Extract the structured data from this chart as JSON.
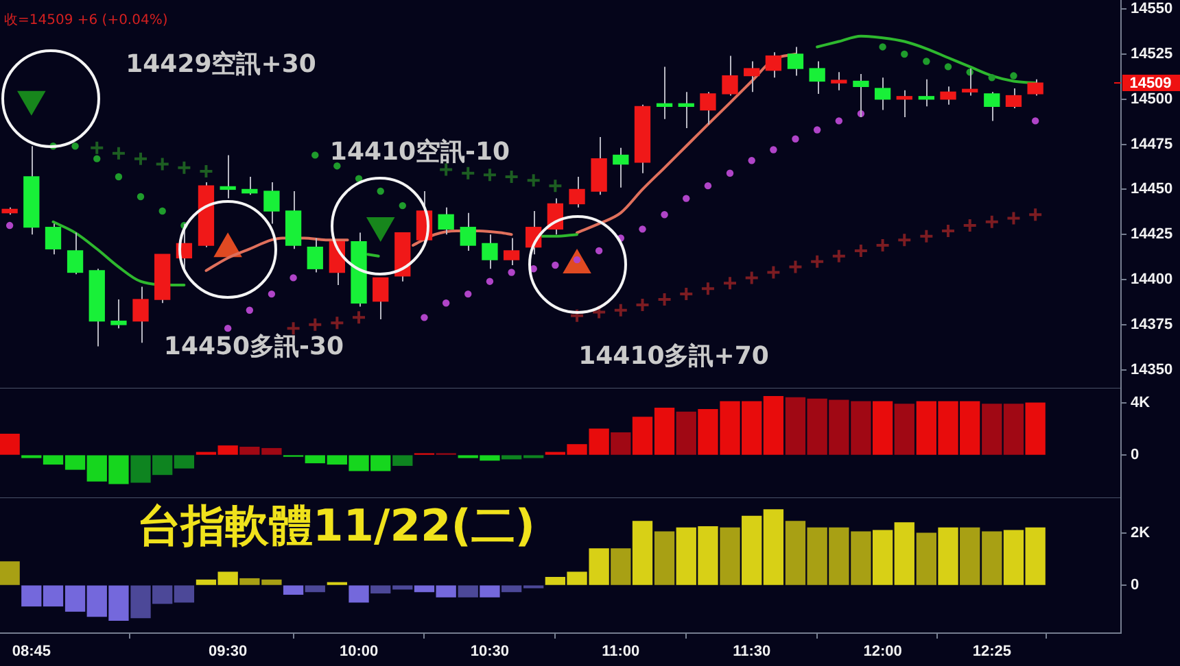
{
  "chart_data": [
    {
      "type": "candlestick",
      "subtitle": "收=14509 +6 (+0.04%)",
      "x": [
        8.667,
        8.75,
        8.833,
        8.917,
        9,
        9.083,
        9.167,
        9.25,
        9.333,
        9.417,
        9.5,
        9.583,
        9.667,
        9.75,
        9.833,
        9.917,
        10,
        10.083,
        10.167,
        10.25,
        10.333,
        10.417,
        10.5,
        10.583,
        10.667,
        10.75,
        10.833,
        10.917,
        11,
        11.083,
        11.167,
        11.25,
        11.333,
        11.417,
        11.5,
        11.583,
        11.667,
        11.75,
        11.833,
        11.917,
        12,
        12.083,
        12.167,
        12.25,
        12.333,
        12.417,
        12.5,
        12.583
      ],
      "xlim": [
        8.63,
        12.91
      ],
      "ylim": [
        14340,
        14555
      ],
      "yticks": [
        14350,
        14375,
        14400,
        14425,
        14450,
        14475,
        14500,
        14525,
        14550
      ],
      "tick_labels": "y",
      "series": [
        {
          "type": "candlestick",
          "ohlc": [
            [
              14437,
              14440,
              14436,
              14439
            ],
            [
              14457,
              14474,
              14425,
              14429
            ],
            [
              14429,
              14431,
              14414,
              14417
            ],
            [
              14416,
              14426,
              14403,
              14404
            ],
            [
              14405,
              14406,
              14363,
              14377
            ],
            [
              14377,
              14389,
              14373,
              14375
            ],
            [
              14377,
              14396,
              14365,
              14389
            ],
            [
              14389,
              14414,
              14387,
              14414
            ],
            [
              14412,
              14431,
              14406,
              14420
            ],
            [
              14419,
              14454,
              14418,
              14452
            ],
            [
              14451,
              14469,
              14445,
              14450
            ],
            [
              14450,
              14457,
              14447,
              14448
            ],
            [
              14449,
              14454,
              14431,
              14438
            ],
            [
              14438,
              14449,
              14417,
              14419
            ],
            [
              14418,
              14423,
              14404,
              14406
            ],
            [
              14404,
              14421,
              14397,
              14421
            ],
            [
              14421,
              14426,
              14385,
              14387
            ],
            [
              14388,
              14401,
              14378,
              14401
            ],
            [
              14402,
              14426,
              14399,
              14426
            ],
            [
              14422,
              14449,
              14420,
              14438
            ],
            [
              14436,
              14440,
              14425,
              14428
            ],
            [
              14429,
              14437,
              14416,
              14419
            ],
            [
              14420,
              14425,
              14406,
              14411
            ],
            [
              14411,
              14423,
              14408,
              14416
            ],
            [
              14418,
              14438,
              14414,
              14429
            ],
            [
              14428,
              14445,
              14425,
              14442
            ],
            [
              14442,
              14457,
              14440,
              14450
            ],
            [
              14449,
              14479,
              14447,
              14467
            ],
            [
              14469,
              14473,
              14451,
              14464
            ],
            [
              14465,
              14497,
              14459,
              14496
            ],
            [
              14497,
              14518,
              14489,
              14496
            ],
            [
              14497,
              14504,
              14484,
              14496
            ],
            [
              14494,
              14504,
              14486,
              14503
            ],
            [
              14503,
              14524,
              14502,
              14513
            ],
            [
              14513,
              14521,
              14504,
              14517
            ],
            [
              14516,
              14526,
              14512,
              14524
            ],
            [
              14525,
              14529,
              14513,
              14517
            ],
            [
              14517,
              14521,
              14503,
              14510
            ],
            [
              14509,
              14515,
              14505,
              14510
            ],
            [
              14510,
              14514,
              14490,
              14507
            ],
            [
              14506,
              14512,
              14494,
              14500
            ],
            [
              14500,
              14505,
              14490,
              14501
            ],
            [
              14501,
              14511,
              14496,
              14500
            ],
            [
              14500,
              14507,
              14497,
              14504
            ],
            [
              14504,
              14517,
              14502,
              14505
            ],
            [
              14503,
              14504,
              14488,
              14496
            ],
            [
              14496,
              14506,
              14495,
              14502
            ],
            [
              14503,
              14511,
              14502,
              14509
            ]
          ],
          "colors": [
            "#f01818",
            "#18f038",
            "#18f038",
            "#18f038",
            "#18f038",
            "#18f038",
            "#f01818",
            "#f01818",
            "#f01818",
            "#f01818",
            "#18f038",
            "#18f038",
            "#18f038",
            "#18f038",
            "#18f038",
            "#f01818",
            "#18f038",
            "#f01818",
            "#f01818",
            "#f01818",
            "#18f038",
            "#18f038",
            "#18f038",
            "#f01818",
            "#f01818",
            "#f01818",
            "#f01818",
            "#f01818",
            "#18f038",
            "#f01818",
            "#18f038",
            "#18f038",
            "#f01818",
            "#f01818",
            "#f01818",
            "#f01818",
            "#18f038",
            "#18f038",
            "#f01818",
            "#18f038",
            "#18f038",
            "#f01818",
            "#18f038",
            "#f01818",
            "#f01818",
            "#18f038",
            "#f01818",
            "#f01818"
          ]
        },
        {
          "type": "line",
          "color": "#2eb82e",
          "marker": "none",
          "x": [
            8.833,
            8.917,
            9,
            9.083,
            9.167,
            9.29,
            9.333
          ],
          "values": [
            14432,
            14426,
            14417,
            14407,
            14399,
            14397,
            14397
          ]
        },
        {
          "type": "line",
          "color": "#2eb82e",
          "marker": "none",
          "x": [
            10.034,
            10.075
          ],
          "values": [
            14414,
            14413
          ]
        },
        {
          "type": "line",
          "color": "#2eb82e",
          "marker": "none",
          "x": [
            10.7,
            10.75,
            10.833
          ],
          "values": [
            14424,
            14424,
            14425
          ]
        },
        {
          "type": "line",
          "color": "#2eb82e",
          "marker": "none",
          "x": [
            11.75,
            11.833,
            11.917,
            12,
            12.083,
            12.167,
            12.25,
            12.333,
            12.417,
            12.5,
            12.583
          ],
          "values": [
            14529,
            14532,
            14535,
            14534,
            14532,
            14528,
            14523,
            14518,
            14513,
            14510,
            14509
          ]
        },
        {
          "type": "line",
          "color": "#e0705c",
          "marker": "none",
          "x": [
            9.417,
            9.5,
            9.583,
            9.667,
            9.708,
            9.791,
            9.874,
            9.957
          ],
          "values": [
            14405,
            14412,
            14417,
            14422,
            14423,
            14423,
            14422,
            14422
          ]
        },
        {
          "type": "line",
          "color": "#e0705c",
          "marker": "none",
          "x": [
            10.207,
            10.29,
            10.374,
            10.458,
            10.541,
            10.583
          ],
          "values": [
            14419,
            14425,
            14427,
            14427,
            14426,
            14425
          ]
        },
        {
          "type": "line",
          "color": "#e0705c",
          "marker": "none",
          "x": [
            10.833,
            10.917,
            11,
            11.083,
            11.167,
            11.25,
            11.333,
            11.417,
            11.5,
            11.583,
            11.667
          ],
          "values": [
            14426,
            14431,
            14437,
            14450,
            14462,
            14474,
            14486,
            14498,
            14510,
            14522,
            14525
          ]
        },
        {
          "type": "scatter",
          "color": "#1f9c2c",
          "marker": "circle",
          "values": [
            null,
            null,
            14474,
            14474,
            14467,
            14457,
            14446,
            14438,
            14430,
            null,
            null,
            null,
            null,
            null,
            14469,
            14463,
            14456,
            14449,
            14441,
            null,
            null,
            null,
            null,
            null,
            null,
            null,
            null,
            null,
            null,
            null,
            null,
            null,
            null,
            null,
            null,
            null,
            null,
            null,
            null,
            null,
            14529,
            14525,
            14521,
            14518,
            14515,
            14512,
            14513,
            null
          ]
        },
        {
          "type": "scatter",
          "color": "#b044c8",
          "marker": "circle",
          "values": [
            14430,
            null,
            null,
            null,
            null,
            null,
            null,
            null,
            null,
            null,
            14373,
            14383,
            14392,
            14401,
            null,
            null,
            null,
            null,
            null,
            14379,
            14387,
            14392,
            14399,
            14404,
            14406,
            14408,
            14411,
            14416,
            14423,
            14428,
            14436,
            14445,
            14452,
            14459,
            14466,
            14472,
            14478,
            14483,
            14488,
            14492,
            null,
            null,
            null,
            null,
            null,
            null,
            null,
            14488
          ]
        },
        {
          "type": "scatter",
          "color": "#1d5e22",
          "marker": "cross",
          "values": [
            null,
            null,
            null,
            null,
            14473,
            14470,
            14467,
            14464,
            14462,
            14460,
            null,
            null,
            null,
            null,
            null,
            null,
            null,
            null,
            null,
            null,
            14461,
            14459,
            14458,
            14457,
            14455,
            14452,
            null,
            null,
            null,
            null,
            null,
            null,
            null,
            null,
            null,
            null,
            null,
            null,
            null,
            null,
            null,
            null,
            null,
            null,
            null,
            null,
            null,
            null
          ]
        },
        {
          "type": "scatter",
          "color": "#7c1c22",
          "marker": "cross",
          "values": [
            null,
            null,
            null,
            null,
            null,
            null,
            null,
            null,
            null,
            null,
            null,
            null,
            null,
            14373,
            14375,
            14376,
            14379,
            null,
            null,
            null,
            null,
            null,
            null,
            null,
            null,
            null,
            14380,
            14382,
            14383,
            14386,
            14389,
            14392,
            14395,
            14398,
            14401,
            14404,
            14407,
            14410,
            14413,
            14416,
            14419,
            14422,
            14424,
            14427,
            14430,
            14432,
            14434,
            14436
          ]
        },
        {
          "type": "scatter",
          "color": "#17861c",
          "marker": "triangle",
          "x": [
            8.75,
            10.083
          ],
          "values": [
            14500,
            14430
          ]
        },
        {
          "type": "scatter",
          "color": "#e04a22",
          "marker": "triangle",
          "x": [
            9.5,
            10.833
          ],
          "values": [
            14417,
            14408
          ]
        }
      ],
      "annotations": [
        "14429空訊+30",
        "14450多訊-30",
        "14410空訊-10",
        "14410多訊+70",
        "14509"
      ]
    },
    {
      "type": "bar",
      "x": [
        8.667,
        8.75,
        8.833,
        8.917,
        9,
        9.083,
        9.167,
        9.25,
        9.333,
        9.417,
        9.5,
        9.583,
        9.667,
        9.75,
        9.833,
        9.917,
        10,
        10.083,
        10.167,
        10.25,
        10.333,
        10.417,
        10.5,
        10.583,
        10.667,
        10.75,
        10.833,
        10.917,
        11,
        11.083,
        11.167,
        11.25,
        11.333,
        11.417,
        11.5,
        11.583,
        11.667,
        11.75,
        11.833,
        11.917,
        12,
        12.083,
        12.167,
        12.25,
        12.333,
        12.417,
        12.5,
        12.583
      ],
      "values": [
        1600,
        -200,
        -700,
        -1100,
        -2000,
        -2200,
        -2100,
        -1500,
        -1000,
        200,
        700,
        600,
        500,
        -100,
        -600,
        -700,
        -1200,
        -1200,
        -800,
        100,
        100,
        -200,
        -400,
        -300,
        -200,
        200,
        800,
        2000,
        1700,
        2900,
        3600,
        3300,
        3500,
        4100,
        4100,
        4500,
        4400,
        4300,
        4200,
        4100,
        4100,
        3900,
        4100,
        4100,
        4100,
        3900,
        3900,
        4000
      ],
      "colors": [
        "#e80c0c",
        "#16d61e",
        "#16d61e",
        "#16d61e",
        "#16d61e",
        "#16d61e",
        "#0e8420",
        "#0e8420",
        "#0e8420",
        "#e80c0c",
        "#e80c0c",
        "#a00814",
        "#a00814",
        "#16d61e",
        "#16d61e",
        "#16d61e",
        "#16d61e",
        "#16d61e",
        "#0e8420",
        "#e80c0c",
        "#a00814",
        "#16d61e",
        "#16d61e",
        "#0e8420",
        "#0e8420",
        "#e80c0c",
        "#e80c0c",
        "#e80c0c",
        "#a00814",
        "#e80c0c",
        "#e80c0c",
        "#a00814",
        "#e80c0c",
        "#e80c0c",
        "#e80c0c",
        "#e80c0c",
        "#a00814",
        "#a00814",
        "#a00814",
        "#a00814",
        "#e80c0c",
        "#a00814",
        "#e80c0c",
        "#e80c0c",
        "#e80c0c",
        "#a00814",
        "#a00814",
        "#e80c0c"
      ],
      "xlim": [
        8.63,
        12.91
      ],
      "ylim": [
        -3260,
        5160
      ],
      "yticks": [
        0,
        {
          "value": 4000,
          "label": "4K"
        }
      ],
      "tick_labels": "y"
    },
    {
      "type": "bar",
      "title": "台指軟體11/22(二)",
      "x": [
        8.667,
        8.75,
        8.833,
        8.917,
        9,
        9.083,
        9.167,
        9.25,
        9.333,
        9.417,
        9.5,
        9.583,
        9.667,
        9.75,
        9.833,
        9.917,
        10,
        10.083,
        10.167,
        10.25,
        10.333,
        10.417,
        10.5,
        10.583,
        10.667,
        10.75,
        10.833,
        10.917,
        11,
        11.083,
        11.167,
        11.25,
        11.333,
        11.417,
        11.5,
        11.583,
        11.667,
        11.75,
        11.833,
        11.917,
        12,
        12.083,
        12.167,
        12.25,
        12.333,
        12.417,
        12.5,
        12.583
      ],
      "values": [
        900,
        -800,
        -800,
        -1000,
        -1200,
        -1350,
        -1250,
        -700,
        -650,
        200,
        500,
        250,
        200,
        -350,
        -250,
        100,
        -650,
        -300,
        -150,
        -250,
        -450,
        -450,
        -450,
        -250,
        -100,
        300,
        500,
        1400,
        1400,
        2450,
        2050,
        2200,
        2250,
        2200,
        2650,
        2900,
        2450,
        2200,
        2200,
        2050,
        2100,
        2400,
        2000,
        2200,
        2200,
        2050,
        2100,
        2200
      ],
      "colors": [
        "#a8a014",
        "#7468dc",
        "#7468dc",
        "#7468dc",
        "#7468dc",
        "#7468dc",
        "#4c4898",
        "#4c4898",
        "#4c4898",
        "#d8d016",
        "#d8d016",
        "#a8a014",
        "#a8a014",
        "#7468dc",
        "#4c4898",
        "#d8d016",
        "#7468dc",
        "#4c4898",
        "#4c4898",
        "#7468dc",
        "#7468dc",
        "#4c4898",
        "#7468dc",
        "#4c4898",
        "#4c4898",
        "#d8d016",
        "#d8d016",
        "#d8d016",
        "#a8a014",
        "#d8d016",
        "#a8a014",
        "#d8d016",
        "#d8d016",
        "#a8a014",
        "#d8d016",
        "#d8d016",
        "#a8a014",
        "#a8a014",
        "#a8a014",
        "#a8a014",
        "#d8d016",
        "#d8d016",
        "#a8a014",
        "#d8d016",
        "#a8a014",
        "#a8a014",
        "#d8d016",
        "#d8d016"
      ],
      "xlim": [
        8.63,
        12.91
      ],
      "xticks": [
        {
          "value": 8.75,
          "label": "08:45"
        },
        {
          "value": 9.5,
          "label": "09:30"
        },
        {
          "value": 10,
          "label": "10:00"
        },
        {
          "value": 10.5,
          "label": "10:30"
        },
        {
          "value": 11,
          "label": "11:00"
        },
        {
          "value": 11.5,
          "label": "11:30"
        },
        {
          "value": 12,
          "label": "12:00"
        },
        {
          "value": 12.417,
          "label": "12:25"
        }
      ],
      "ylim": [
        -1840,
        3370
      ],
      "yticks": [
        0,
        {
          "value": 2000,
          "label": "2K"
        }
      ]
    }
  ]
}
